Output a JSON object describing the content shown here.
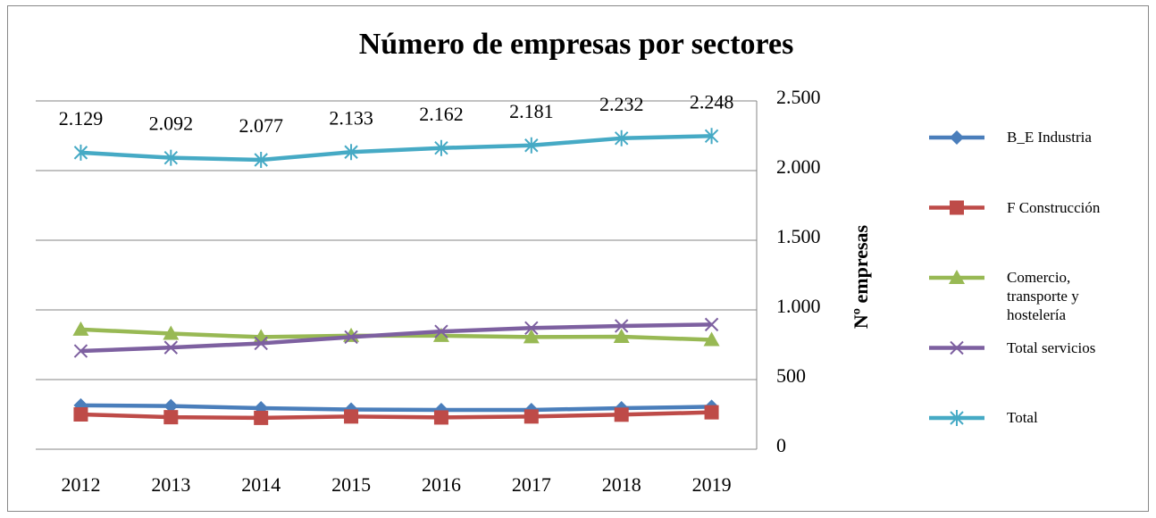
{
  "chart_data": {
    "type": "line",
    "title": "Número de empresas por sectores",
    "y_axis_label": "Nº empresas",
    "categories": [
      "2012",
      "2013",
      "2014",
      "2015",
      "2016",
      "2017",
      "2018",
      "2019"
    ],
    "series": [
      {
        "name": "B_E Industria",
        "color": "#4a7ebb",
        "marker": "diamond",
        "values": [
          315,
          310,
          295,
          285,
          282,
          282,
          295,
          305
        ]
      },
      {
        "name": "F Construcción",
        "color": "#be4b48",
        "marker": "square",
        "values": [
          250,
          230,
          225,
          235,
          228,
          235,
          248,
          265
        ]
      },
      {
        "name": "Comercio, transporte y hostelería",
        "color": "#98b954",
        "marker": "triangle",
        "values": [
          860,
          830,
          805,
          815,
          815,
          805,
          808,
          785
        ]
      },
      {
        "name": "Total servicios",
        "color": "#7d60a0",
        "marker": "x",
        "values": [
          705,
          730,
          760,
          805,
          845,
          870,
          885,
          895
        ]
      },
      {
        "name": "Total",
        "color": "#46aac5",
        "marker": "star",
        "values": [
          2129,
          2092,
          2077,
          2133,
          2162,
          2181,
          2232,
          2248
        ],
        "value_labels": [
          "2.129",
          "2.092",
          "2.077",
          "2.133",
          "2.162",
          "2.181",
          "2.232",
          "2.248"
        ]
      }
    ],
    "ylim": [
      0,
      2500
    ],
    "yticks": [
      0,
      500,
      {
        "value": 1000,
        "label": "1.000"
      },
      {
        "value": 1500,
        "label": "1.500"
      },
      {
        "value": 2000,
        "label": "2.000"
      },
      {
        "value": 2500,
        "label": "2.500"
      }
    ],
    "y_axis_side": "right",
    "grid": true,
    "legend": "right"
  }
}
